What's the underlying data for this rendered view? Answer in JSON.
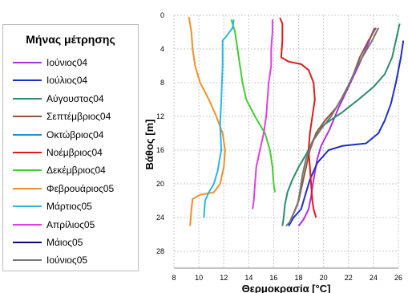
{
  "legend": {
    "title": "Μήνας μέτρησης"
  },
  "chart_data": {
    "type": "line",
    "xlabel": "Θερμοκρασία [°C]",
    "ylabel": "Βάθος [m]",
    "xlim": [
      8,
      26
    ],
    "ylim": [
      0,
      30
    ],
    "y_inverted": true,
    "x_axis_position": "bottom",
    "grid": true,
    "grid_style": "dotted",
    "legend_position": "left",
    "xticks": [
      "8",
      "10",
      "12",
      "14",
      "16",
      "18",
      "20",
      "22",
      "24",
      "26"
    ],
    "yticks": [
      "0",
      "4",
      "8",
      "12",
      "16",
      "20",
      "24",
      "28"
    ],
    "series": [
      {
        "name": "Ιούνιος04",
        "color": "#b030e0",
        "points": [
          [
            24.1,
            1.5
          ],
          [
            23.8,
            2.5
          ],
          [
            23.4,
            4
          ],
          [
            22.8,
            6
          ],
          [
            22,
            8.5
          ],
          [
            21.2,
            11
          ],
          [
            20.5,
            13.5
          ],
          [
            19.8,
            15.5
          ],
          [
            19.5,
            17
          ],
          [
            19.2,
            19.5
          ],
          [
            19,
            21.5
          ],
          [
            18.8,
            23
          ],
          [
            18.4,
            24.2
          ],
          [
            18,
            25
          ]
        ]
      },
      {
        "name": "Ιούλιος04",
        "color": "#1c2fc8",
        "points": [
          [
            26.4,
            3
          ],
          [
            26.2,
            5
          ],
          [
            25.8,
            8
          ],
          [
            25.4,
            10.5
          ],
          [
            24.9,
            12.5
          ],
          [
            24.4,
            14
          ],
          [
            23.4,
            15.2
          ],
          [
            21.5,
            15.5
          ],
          [
            20.4,
            16
          ],
          [
            19.5,
            17.5
          ],
          [
            18.9,
            19.5
          ],
          [
            18.5,
            21.5
          ],
          [
            18.2,
            23
          ],
          [
            17.6,
            24
          ],
          [
            17.2,
            25
          ]
        ]
      },
      {
        "name": "Αύγουστος04",
        "color": "#2e8b6b",
        "points": [
          [
            26.1,
            1
          ],
          [
            25.8,
            3
          ],
          [
            25.5,
            5
          ],
          [
            24.9,
            7
          ],
          [
            24,
            8.5
          ],
          [
            22.8,
            10
          ],
          [
            21.5,
            11.5
          ],
          [
            20.5,
            12.5
          ],
          [
            19.6,
            13.5
          ],
          [
            19.1,
            15
          ],
          [
            18.6,
            16.5
          ],
          [
            18,
            18
          ],
          [
            17.5,
            19.5
          ],
          [
            17.1,
            21
          ],
          [
            16.9,
            22.5
          ],
          [
            16.8,
            24
          ],
          [
            16.7,
            25
          ]
        ]
      },
      {
        "name": "Σεπτέμβριος04",
        "color": "#8b5a3c",
        "points": [
          [
            24.2,
            1.5
          ],
          [
            23.6,
            3
          ],
          [
            22.9,
            5
          ],
          [
            22.4,
            7
          ],
          [
            21.8,
            9
          ],
          [
            21,
            11
          ],
          [
            20.1,
            12.5
          ],
          [
            19.4,
            14
          ],
          [
            18.9,
            16
          ],
          [
            18.6,
            18
          ],
          [
            18.3,
            20
          ],
          [
            18,
            22
          ],
          [
            17.6,
            23.5
          ],
          [
            17.3,
            24.5
          ]
        ]
      },
      {
        "name": "Οκτώβριος04",
        "color": "#1e90d8",
        "points": []
      },
      {
        "name": "Νοέμβριος04",
        "color": "#dd1a1a",
        "points": [
          [
            16.5,
            0.3
          ],
          [
            16.7,
            1
          ],
          [
            16.7,
            3
          ],
          [
            16.6,
            5
          ],
          [
            17.2,
            5.5
          ],
          [
            18.2,
            5.8
          ],
          [
            18.8,
            6.5
          ],
          [
            19.2,
            8
          ],
          [
            19.3,
            10
          ],
          [
            19.1,
            12
          ],
          [
            18.9,
            14
          ],
          [
            18.8,
            16
          ],
          [
            18.9,
            18
          ],
          [
            19,
            20
          ],
          [
            19.1,
            22
          ],
          [
            19.2,
            23
          ],
          [
            19.4,
            24
          ]
        ]
      },
      {
        "name": "Δεκέμβριος04",
        "color": "#44cc33",
        "points": [
          [
            12.6,
            0.5
          ],
          [
            12.9,
            2
          ],
          [
            13.1,
            4
          ],
          [
            13.3,
            6
          ],
          [
            13.5,
            8
          ],
          [
            13.8,
            10
          ],
          [
            14.5,
            12
          ],
          [
            15.3,
            14
          ],
          [
            15.7,
            16
          ],
          [
            15.9,
            18
          ],
          [
            16,
            20
          ],
          [
            16.1,
            21
          ]
        ]
      },
      {
        "name": "Φεβρουάριος05",
        "color": "#f0902a",
        "points": [
          [
            9.2,
            0.2
          ],
          [
            9.4,
            2
          ],
          [
            9.5,
            4
          ],
          [
            9.7,
            6
          ],
          [
            10.1,
            8
          ],
          [
            10.8,
            10
          ],
          [
            11.4,
            12
          ],
          [
            11.9,
            14
          ],
          [
            12.1,
            16
          ],
          [
            12,
            18
          ],
          [
            11.7,
            20
          ],
          [
            11.2,
            21
          ],
          [
            10.1,
            21.3
          ],
          [
            9.5,
            21.8
          ],
          [
            9.4,
            23
          ],
          [
            9.3,
            25
          ]
        ]
      },
      {
        "name": "Μάρτιος05",
        "color": "#29b6e0",
        "points": [
          [
            12.8,
            0.5
          ],
          [
            12.7,
            1.5
          ],
          [
            12.2,
            2.5
          ],
          [
            11.9,
            3
          ],
          [
            11.9,
            6
          ],
          [
            11.8,
            10
          ],
          [
            11.7,
            13
          ],
          [
            11.8,
            16
          ],
          [
            11.5,
            18.5
          ],
          [
            11.2,
            20
          ],
          [
            10.8,
            21
          ],
          [
            10.5,
            22
          ],
          [
            10.4,
            24
          ]
        ]
      },
      {
        "name": "Απρίλιος05",
        "color": "#e040e0",
        "points": [
          [
            15.9,
            0.5
          ],
          [
            15.9,
            2
          ],
          [
            15.8,
            4
          ],
          [
            15.8,
            6
          ],
          [
            15.6,
            8
          ],
          [
            15.5,
            10
          ],
          [
            15.4,
            12
          ],
          [
            15.2,
            14
          ],
          [
            14.9,
            16
          ],
          [
            14.6,
            18
          ],
          [
            14.5,
            20
          ],
          [
            14.4,
            22
          ],
          [
            14.3,
            23
          ]
        ]
      },
      {
        "name": "Μάιος05",
        "color": "#0a0a7a",
        "points": []
      },
      {
        "name": "Ιούνιος05",
        "color": "#777777",
        "points": [
          [
            24.4,
            1.5
          ],
          [
            23.9,
            3
          ],
          [
            23.3,
            4.5
          ],
          [
            22.7,
            6
          ],
          [
            22.1,
            8
          ],
          [
            21.4,
            10
          ],
          [
            20.6,
            12
          ],
          [
            19.8,
            13.5
          ],
          [
            19.1,
            15
          ],
          [
            18.6,
            17
          ],
          [
            18.3,
            19
          ],
          [
            18.1,
            21
          ],
          [
            17.9,
            22.5
          ],
          [
            17.6,
            23.5
          ],
          [
            17.3,
            24.5
          ],
          [
            17,
            25
          ]
        ]
      }
    ]
  }
}
